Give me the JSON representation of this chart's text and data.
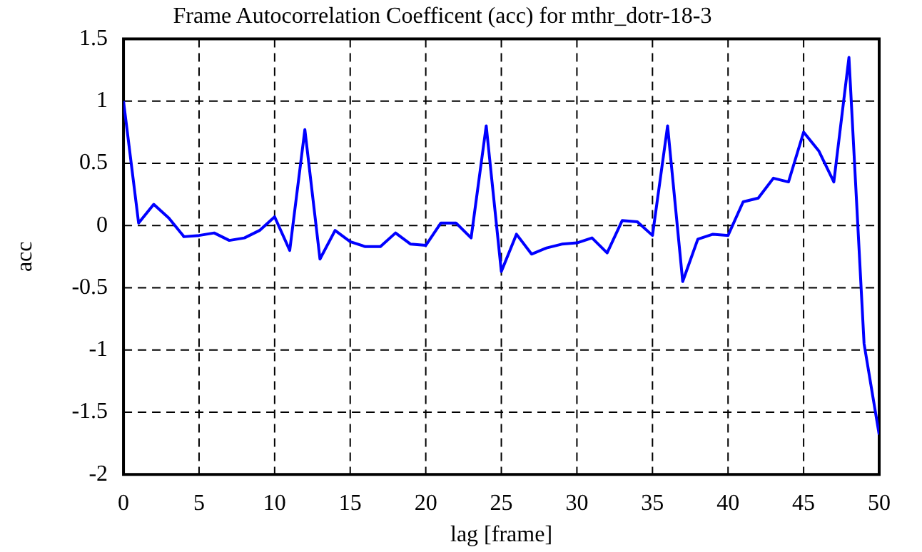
{
  "chart_data": {
    "type": "line",
    "title": "Frame Autocorrelation Coefficent (acc) for mthr_dotr-18-3",
    "xlabel": "lag [frame]",
    "ylabel": "acc",
    "x": [
      0,
      1,
      2,
      3,
      4,
      5,
      6,
      7,
      8,
      9,
      10,
      11,
      12,
      13,
      14,
      15,
      16,
      17,
      18,
      19,
      20,
      21,
      22,
      23,
      24,
      25,
      26,
      27,
      28,
      29,
      30,
      31,
      32,
      33,
      34,
      35,
      36,
      37,
      38,
      39,
      40,
      41,
      42,
      43,
      44,
      45,
      46,
      47,
      48,
      49,
      50
    ],
    "series": [
      {
        "color": "#0000ff",
        "values": [
          1.0,
          0.02,
          0.17,
          0.06,
          -0.09,
          -0.08,
          -0.06,
          -0.12,
          -0.1,
          -0.04,
          0.07,
          -0.2,
          0.77,
          -0.27,
          -0.04,
          -0.13,
          -0.17,
          -0.17,
          -0.06,
          -0.15,
          -0.16,
          0.02,
          0.02,
          -0.1,
          0.8,
          -0.37,
          -0.07,
          -0.23,
          -0.18,
          -0.15,
          -0.14,
          -0.1,
          -0.22,
          0.04,
          0.03,
          -0.08,
          0.8,
          -0.45,
          -0.11,
          -0.07,
          -0.08,
          0.19,
          0.22,
          0.38,
          0.35,
          0.75,
          0.6,
          0.35,
          1.35,
          -0.95,
          -1.68
        ]
      }
    ],
    "xlim": [
      0,
      50
    ],
    "xticks": [
      0,
      5,
      10,
      15,
      20,
      25,
      30,
      35,
      40,
      45,
      50
    ],
    "ylim": [
      -2,
      1.5
    ],
    "yticks": [
      -2,
      -1.5,
      -1,
      -0.5,
      0,
      0.5,
      1,
      1.5
    ],
    "grid": true,
    "legend": false,
    "marker": "none",
    "line_style": "solid"
  }
}
